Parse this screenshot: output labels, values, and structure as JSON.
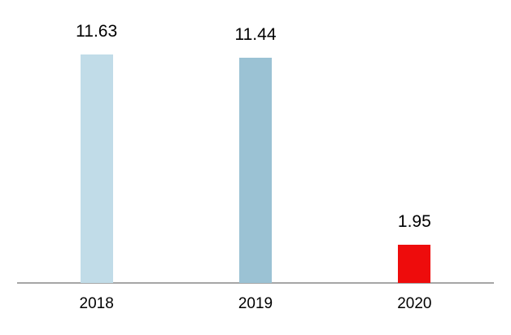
{
  "chart_data": {
    "type": "bar",
    "categories": [
      "2018",
      "2019",
      "2020"
    ],
    "values": [
      11.63,
      11.44,
      1.95
    ],
    "value_labels": [
      "11.63",
      "11.44",
      "1.95"
    ],
    "bar_colors": [
      "#c1dce8",
      "#9bc2d4",
      "#ee0c0c"
    ],
    "axis_line_color": "#a6a6a6",
    "text_color": "#000000",
    "background_color": "#ffffff",
    "ylim": [
      0,
      12
    ],
    "grid": false,
    "legend": false,
    "data_labels_position": "above-bars"
  }
}
